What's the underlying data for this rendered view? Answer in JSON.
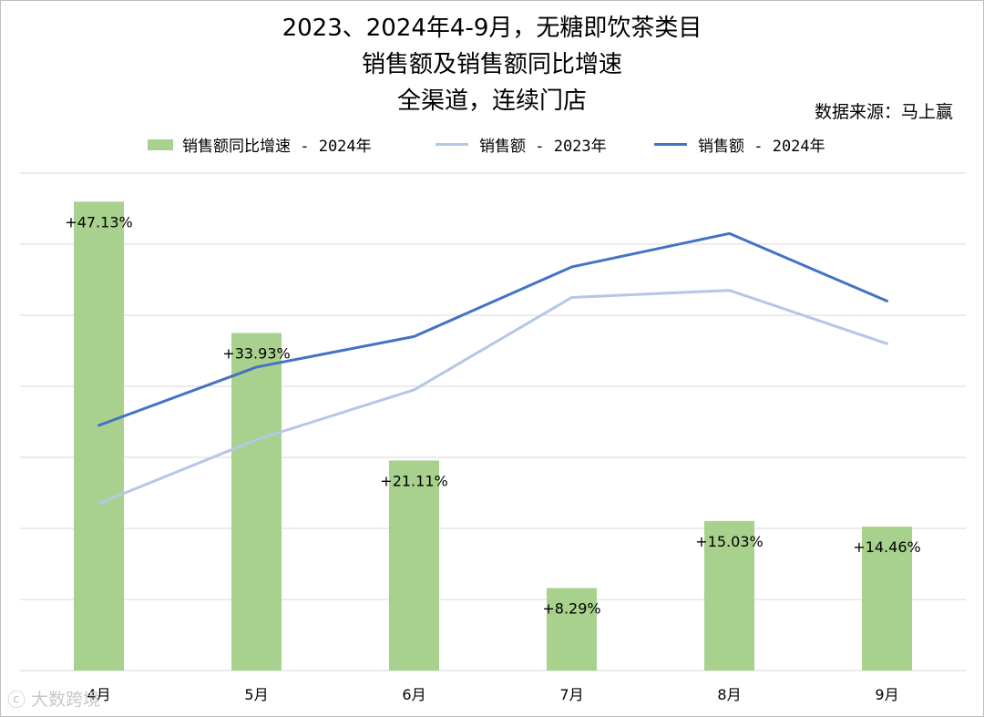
{
  "title_lines": [
    "2023、2024年4-9月，无糖即饮茶类目",
    "销售额及销售额同比增速",
    "全渠道，连续门店"
  ],
  "source": "数据来源：马上赢",
  "watermark": "大数跨境",
  "chart_data": {
    "type": "bar+line",
    "categories": [
      "4月",
      "5月",
      "6月",
      "7月",
      "8月",
      "9月"
    ],
    "bar_series": {
      "name": "销售额同比增速 - 2024年",
      "values": [
        47.13,
        33.93,
        21.11,
        8.29,
        15.03,
        14.46
      ],
      "labels": [
        "+47.13%",
        "+33.93%",
        "+21.11%",
        "+8.29%",
        "+15.03%",
        "+14.46%"
      ],
      "color": "#a9d18e",
      "axis_range": [
        0,
        50
      ]
    },
    "line_series": [
      {
        "name": "销售额 - 2023年",
        "values": [
          2.35,
          3.25,
          3.95,
          5.25,
          5.35,
          4.6
        ],
        "color": "#b4c7e7"
      },
      {
        "name": "销售额 - 2024年",
        "values": [
          3.45,
          4.27,
          4.7,
          5.68,
          6.15,
          5.2
        ],
        "color": "#4472c4"
      }
    ],
    "line_axis_range": [
      0,
      7
    ],
    "grid": true,
    "legend_position": "top",
    "axis_labels_shown": false
  }
}
